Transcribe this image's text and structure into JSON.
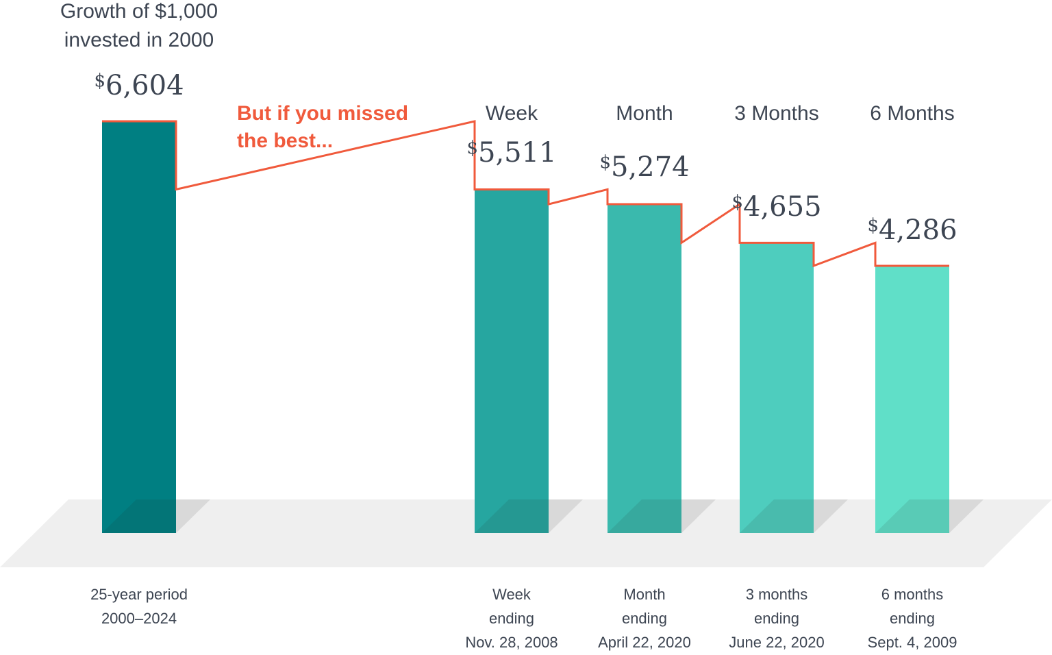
{
  "chart_data": {
    "type": "bar",
    "title_lines": [
      "Growth of $1,000",
      "invested in 2000"
    ],
    "annotation_lines": [
      "But if you missed",
      "the best..."
    ],
    "currency_symbol": "$",
    "ylim": [
      0,
      6604
    ],
    "categories": [
      {
        "key": "baseline",
        "header": "",
        "value": 6604,
        "value_label": "6,604",
        "color": "#007f82",
        "footer_lines": [
          "25-year period",
          "2000–2024"
        ]
      },
      {
        "key": "week",
        "header": "Week",
        "value": 5511,
        "value_label": "5,511",
        "color": "#26a6a0",
        "footer_lines": [
          "Week",
          "ending",
          "Nov. 28, 2008"
        ]
      },
      {
        "key": "month",
        "header": "Month",
        "value": 5274,
        "value_label": "5,274",
        "color": "#3ab9ad",
        "footer_lines": [
          "Month",
          "ending",
          "April 22, 2020"
        ]
      },
      {
        "key": "three-months",
        "header": "3 Months",
        "value": 4655,
        "value_label": "4,655",
        "color": "#4ecdbe",
        "footer_lines": [
          "3 months",
          "ending",
          "June 22, 2020"
        ]
      },
      {
        "key": "six-months",
        "header": "6 Months",
        "value": 4286,
        "value_label": "4,286",
        "color": "#60dfc8",
        "footer_lines": [
          "6 months",
          "ending",
          "Sept. 4, 2009"
        ]
      }
    ],
    "colors": {
      "step_line": "#f05a3c",
      "annotation": "#f05a3c",
      "text": "#3d4552",
      "floor": "#efefef",
      "floor_shadow": "#1a1a1a"
    }
  }
}
